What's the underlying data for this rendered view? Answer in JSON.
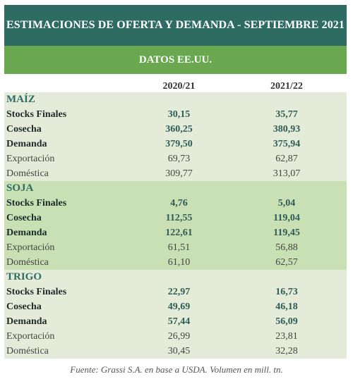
{
  "header": {
    "title": "ESTIMACIONES DE OFERTA Y DEMANDA - SEPTIEMBRE 2021",
    "subtitle": "DATOS EE.UU."
  },
  "columns": [
    "2020/21",
    "2021/22"
  ],
  "sections": [
    {
      "name": "MAÍZ",
      "rows": [
        {
          "label": "Stocks Finales",
          "v1": "30,15",
          "v2": "35,77"
        },
        {
          "label": "Cosecha",
          "v1": "360,25",
          "v2": "380,93"
        },
        {
          "label": "Demanda",
          "v1": "379,50",
          "v2": "375,94"
        },
        {
          "label": "Exportación",
          "v1": "69,73",
          "v2": "62,87"
        },
        {
          "label": "Doméstica",
          "v1": "309,77",
          "v2": "313,07"
        }
      ]
    },
    {
      "name": "SOJA",
      "rows": [
        {
          "label": "Stocks Finales",
          "v1": "4,76",
          "v2": "5,04"
        },
        {
          "label": "Cosecha",
          "v1": "112,55",
          "v2": "119,04"
        },
        {
          "label": "Demanda",
          "v1": "122,61",
          "v2": "119,45"
        },
        {
          "label": "Exportación",
          "v1": "61,51",
          "v2": "56,88"
        },
        {
          "label": "Doméstica",
          "v1": "61,10",
          "v2": "62,57"
        }
      ]
    },
    {
      "name": "TRIGO",
      "rows": [
        {
          "label": "Stocks Finales",
          "v1": "22,97",
          "v2": "16,73"
        },
        {
          "label": "Cosecha",
          "v1": "49,69",
          "v2": "46,18"
        },
        {
          "label": "Demanda",
          "v1": "57,44",
          "v2": "56,09"
        },
        {
          "label": "Exportación",
          "v1": "26,99",
          "v2": "23,81"
        },
        {
          "label": "Doméstica",
          "v1": "30,45",
          "v2": "32,28"
        }
      ]
    }
  ],
  "source": "Fuente: Grassi S.A. en base a USDA. Volumen en mill. tn."
}
